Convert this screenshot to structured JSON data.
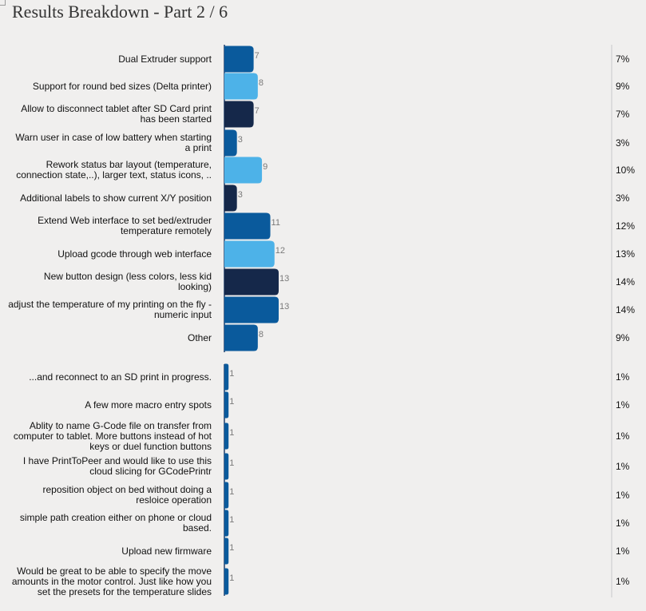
{
  "title": "Results Breakdown - Part 2 / 6",
  "colors": {
    "blue": "#0a5a9c",
    "light_blue": "#4db2e8",
    "navy": "#15284a",
    "axis": "#1f3f6a",
    "count_text": "#7a7a7a",
    "rule": "#c9c9c9"
  },
  "chart_data": {
    "type": "bar",
    "orientation": "horizontal",
    "value_axis_max": 13,
    "groups": [
      {
        "rows": [
          {
            "label": "Dual Extruder support",
            "count": 7,
            "percent": "7%",
            "color": "blue"
          },
          {
            "label": "Support for round bed sizes (Delta printer)",
            "count": 8,
            "percent": "9%",
            "color": "light_blue"
          },
          {
            "label": "Allow to disconnect tablet after SD Card print has been started",
            "count": 7,
            "percent": "7%",
            "color": "navy"
          },
          {
            "label": "Warn user in case of low battery when starting a print",
            "count": 3,
            "percent": "3%",
            "color": "blue"
          },
          {
            "label": "Rework status bar layout (temperature, connection state,..), larger text, status icons, ..",
            "count": 9,
            "percent": "10%",
            "color": "light_blue"
          },
          {
            "label": "Additional labels to show current X/Y position",
            "count": 3,
            "percent": "3%",
            "color": "navy"
          },
          {
            "label": "Extend Web interface to set bed/extruder temperature remotely",
            "count": 11,
            "percent": "12%",
            "color": "blue"
          },
          {
            "label": "Upload gcode through web interface",
            "count": 12,
            "percent": "13%",
            "color": "light_blue"
          },
          {
            "label": "New button design (less colors, less kid looking)",
            "count": 13,
            "percent": "14%",
            "color": "navy"
          },
          {
            "label": "adjust the temperature of my printing on the fly - numeric input",
            "count": 13,
            "percent": "14%",
            "color": "blue"
          },
          {
            "label": "Other",
            "count": 8,
            "percent": "9%",
            "color": "blue"
          }
        ]
      },
      {
        "rows": [
          {
            "label": "...and reconnect to an SD print in progress.",
            "count": 1,
            "percent": "1%",
            "color": "blue"
          },
          {
            "label": "A few more macro entry spots",
            "count": 1,
            "percent": "1%",
            "color": "blue"
          },
          {
            "label": "Ablity to name G-Code file on transfer from computer to tablet. More buttons instead of hot keys or duel function buttons",
            "count": 1,
            "percent": "1%",
            "color": "blue"
          },
          {
            "label": "I have PrintToPeer and would like to use this cloud slicing for GCodePrintr",
            "count": 1,
            "percent": "1%",
            "color": "blue"
          },
          {
            "label": "reposition object on bed without doing a resloice operation",
            "count": 1,
            "percent": "1%",
            "color": "blue"
          },
          {
            "label": "simple path creation either on phone or cloud based.",
            "count": 1,
            "percent": "1%",
            "color": "blue"
          },
          {
            "label": "Upload new firmware",
            "count": 1,
            "percent": "1%",
            "color": "blue"
          },
          {
            "label": "Would be great to be able to specify the move amounts in the motor control. Just like how you set the presets for the temperature slides",
            "count": 1,
            "percent": "1%",
            "color": "blue"
          }
        ]
      }
    ]
  }
}
